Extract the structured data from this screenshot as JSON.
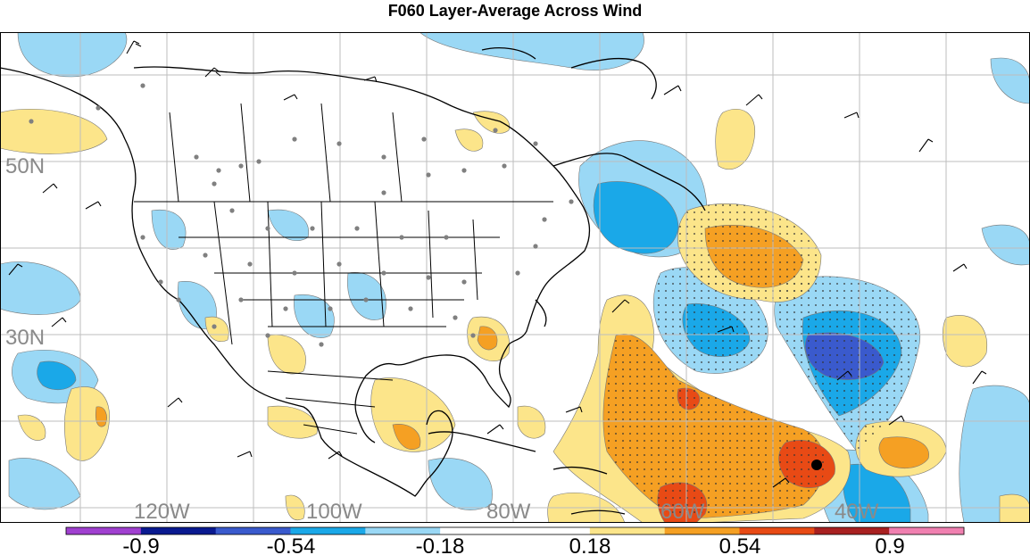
{
  "title": "F060 Layer-Average Across Wind",
  "lat_labels": [
    "50N",
    "30N"
  ],
  "lon_labels": [
    "120W",
    "100W",
    "80W",
    "60W",
    "40W"
  ],
  "colorbar": {
    "labels": [
      "-0.9",
      "-0.54",
      "-0.18",
      "0.18",
      "0.54",
      "0.9"
    ],
    "colors": [
      "#a040d0",
      "#0a1a90",
      "#3a5acd",
      "#1aa8e8",
      "#9ad8f5",
      "#ffffff",
      "#ffffff",
      "#fce58a",
      "#f5a023",
      "#e84a15",
      "#a82020",
      "#f080b0"
    ]
  },
  "legend_colors": {
    "land_outline": "#000000",
    "gridline": "#bdbdbd",
    "station_dot": "#808080"
  }
}
